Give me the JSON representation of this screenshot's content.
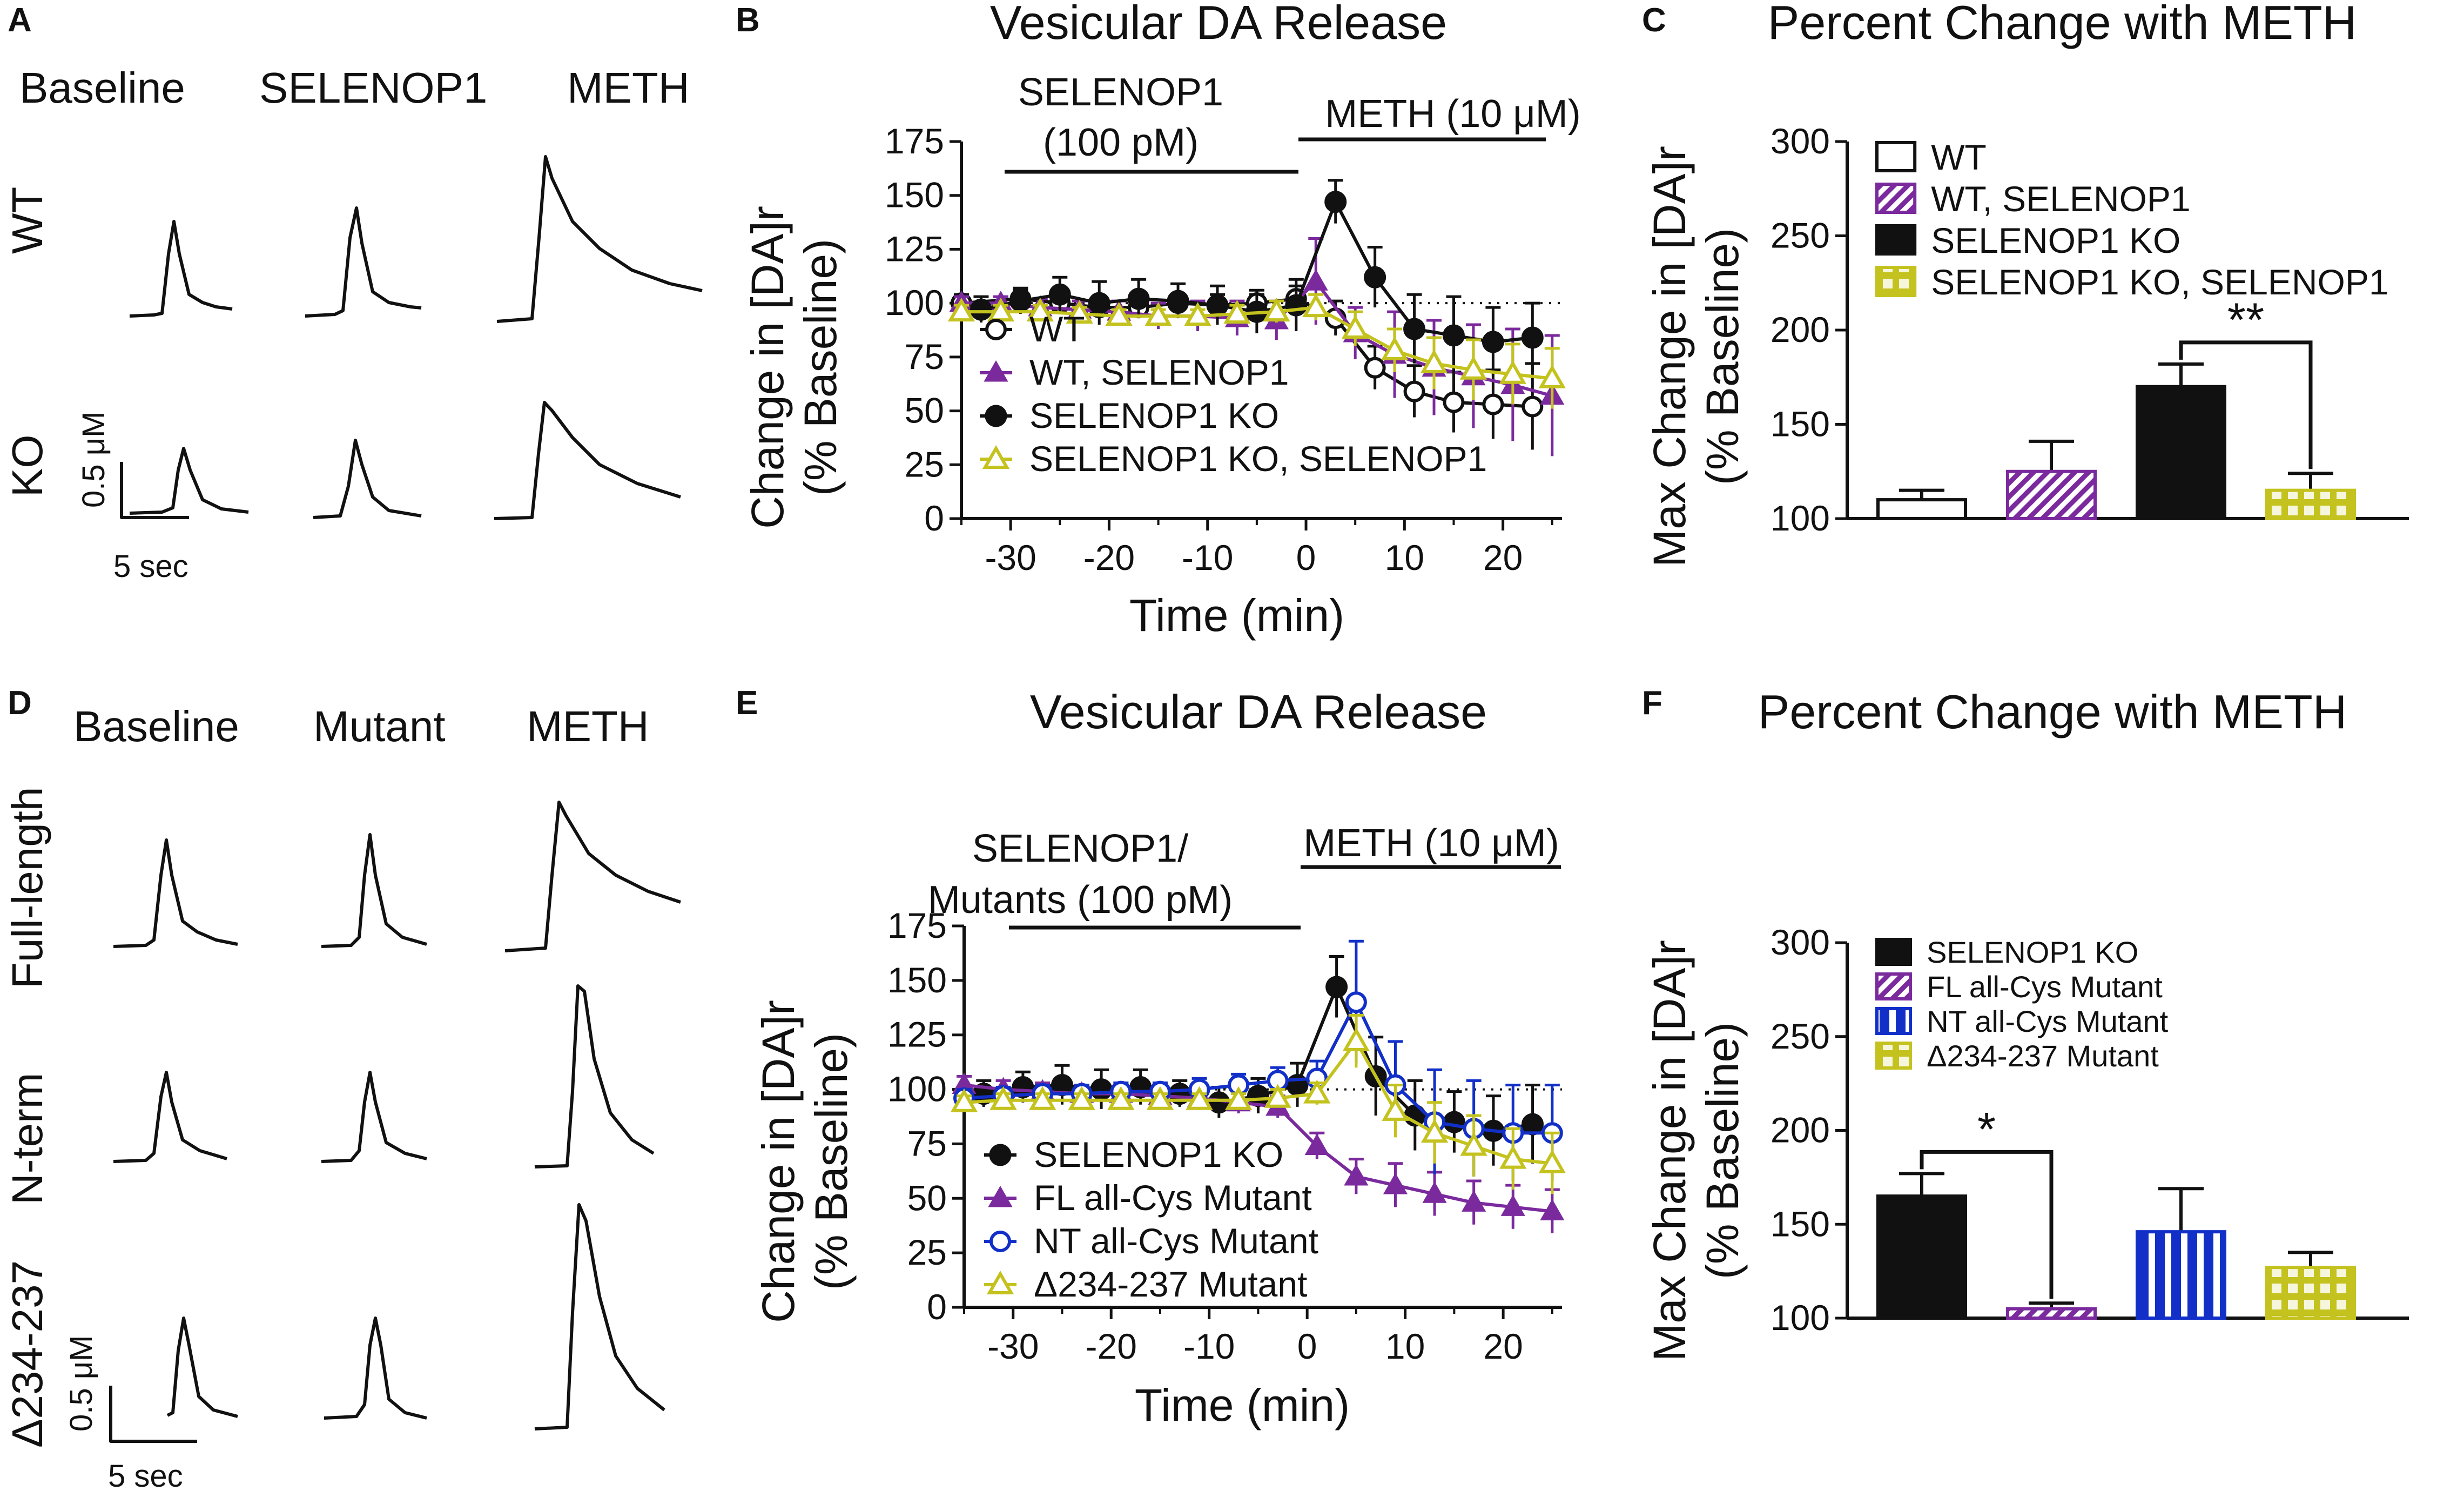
{
  "panels": {
    "A": {
      "letter": "A",
      "col_headers": [
        "Baseline",
        "SELENOP1",
        "METH"
      ],
      "row_labels": [
        "WT",
        "KO"
      ],
      "scale_y": "0.5 μM",
      "scale_x": "5 sec"
    },
    "D": {
      "letter": "D",
      "col_headers": [
        "Baseline",
        "Mutant",
        "METH"
      ],
      "row_labels": [
        "Full-length",
        "N-term",
        "Δ234-237"
      ],
      "scale_y": "0.5 μM",
      "scale_x": "5 sec"
    },
    "B": {
      "letter": "B",
      "treat1_line1": "SELENOP1",
      "treat1_line2": "(100 pM)",
      "treat2": "METH (10 μM)"
    },
    "E": {
      "letter": "E",
      "treat1_line1": "SELENOP1/",
      "treat1_line2": "Mutants (100 pM)",
      "treat2": "METH (10 μM)"
    },
    "C": {
      "letter": "C",
      "significance": "**"
    },
    "F": {
      "letter": "F",
      "significance": "*"
    }
  },
  "colors": {
    "purple": "#7B2A9E",
    "blue": "#1230C8",
    "yellow": "#C4C21E",
    "black": "#111111"
  },
  "chart_data": [
    {
      "id": "B",
      "type": "line",
      "title": "Vesicular DA Release",
      "xlabel": "Time (min)",
      "ylabel_line1": "Change in [DA]r",
      "ylabel_line2": "(% Baseline)",
      "xlim": [
        -35,
        26
      ],
      "ylim": [
        0,
        175
      ],
      "xticks": [
        -30,
        -20,
        -10,
        0,
        10,
        20
      ],
      "yticks": [
        0,
        25,
        50,
        75,
        100,
        125,
        150,
        175
      ],
      "reference_line": 100,
      "series": [
        {
          "name": "WT",
          "marker": "circle-open",
          "color": "#111111",
          "x": [
            -35,
            -29,
            -25,
            -21,
            -17,
            -13,
            -9,
            -5,
            -1,
            3,
            7,
            11,
            15,
            19,
            23
          ],
          "y": [
            100,
            102,
            100,
            98,
            98,
            100,
            99,
            100,
            102,
            93,
            70,
            59,
            54,
            53,
            52
          ],
          "err": [
            4,
            4,
            5,
            4,
            5,
            4,
            5,
            4,
            6,
            8,
            10,
            12,
            14,
            16,
            20
          ]
        },
        {
          "name": "WT, SELENOP1",
          "marker": "triangle",
          "color": "#7B2A9E",
          "x": [
            -35,
            -31,
            -27,
            -23,
            -19,
            -15,
            -11,
            -7,
            -3,
            1,
            5,
            9,
            13,
            17,
            21,
            25
          ],
          "y": [
            100,
            100,
            98,
            97,
            96,
            94,
            94,
            93,
            92,
            110,
            86,
            76,
            70,
            66,
            62,
            57
          ],
          "err": [
            3,
            3,
            4,
            4,
            5,
            6,
            7,
            8,
            9,
            20,
            12,
            20,
            22,
            24,
            26,
            28
          ]
        },
        {
          "name": "SELENOP1 KO",
          "marker": "circle-filled",
          "color": "#111111",
          "x": [
            -33,
            -29,
            -25,
            -21,
            -17,
            -13,
            -9,
            -5,
            -1,
            3,
            7,
            11,
            15,
            19,
            23
          ],
          "y": [
            97,
            101,
            104,
            100,
            102,
            101,
            99,
            96,
            99,
            147,
            112,
            88,
            85,
            82,
            84
          ],
          "err": [
            6,
            6,
            8,
            10,
            9,
            8,
            9,
            10,
            12,
            10,
            14,
            16,
            18,
            16,
            16
          ]
        },
        {
          "name": "SELENOP1 KO, SELENOP1",
          "marker": "triangle-open",
          "color": "#C4C21E",
          "x": [
            -35,
            -31,
            -27,
            -23,
            -19,
            -15,
            -11,
            -7,
            -3,
            1,
            5,
            9,
            13,
            17,
            21,
            25
          ],
          "y": [
            96,
            96,
            96,
            95,
            94,
            94,
            94,
            95,
            96,
            98,
            88,
            78,
            72,
            69,
            67,
            65
          ],
          "err": [
            3,
            3,
            3,
            3,
            3,
            3,
            3,
            4,
            5,
            6,
            8,
            10,
            12,
            14,
            14,
            14
          ]
        }
      ]
    },
    {
      "id": "C",
      "type": "bar",
      "title": "Percent Change with METH",
      "xlabel": "",
      "ylabel_line1": "Max Change in [DA]r",
      "ylabel_line2": "(% Baseline)",
      "ylim": [
        100,
        300
      ],
      "yticks": [
        100,
        150,
        200,
        250,
        300
      ],
      "categories": [
        "WT",
        "WT, SELENOP1",
        "SELENOP1 KO",
        "SELENOP1 KO, SELENOP1"
      ],
      "fills": [
        "open",
        "purple-hatch",
        "black",
        "yellow-grid"
      ],
      "values": [
        110,
        125,
        170,
        115
      ],
      "errors": [
        5,
        16,
        12,
        9
      ],
      "significance": {
        "from": 2,
        "to": 3,
        "label": "**"
      }
    },
    {
      "id": "E",
      "type": "line",
      "title": "Vesicular DA Release",
      "xlabel": "Time (min)",
      "ylabel_line1": "Change in [DA]r",
      "ylabel_line2": "(% Baseline)",
      "xlim": [
        -35,
        26
      ],
      "ylim": [
        0,
        175
      ],
      "xticks": [
        -30,
        -20,
        -10,
        0,
        10,
        20
      ],
      "yticks": [
        0,
        25,
        50,
        75,
        100,
        125,
        150,
        175
      ],
      "reference_line": 100,
      "series": [
        {
          "name": "SELENOP1 KO",
          "marker": "circle-filled",
          "color": "#111111",
          "x": [
            -33,
            -29,
            -25,
            -21,
            -17,
            -13,
            -9,
            -5,
            -1,
            3,
            7,
            11,
            15,
            19,
            23
          ],
          "y": [
            98,
            101,
            102,
            100,
            101,
            98,
            94,
            97,
            102,
            147,
            106,
            88,
            85,
            81,
            84
          ],
          "err": [
            6,
            7,
            9,
            9,
            8,
            6,
            7,
            8,
            10,
            14,
            18,
            16,
            14,
            16,
            18
          ]
        },
        {
          "name": "FL all-Cys Mutant",
          "marker": "triangle",
          "color": "#7B2A9E",
          "x": [
            -35,
            -31,
            -27,
            -23,
            -19,
            -15,
            -11,
            -7,
            -3,
            1,
            5,
            9,
            13,
            17,
            21,
            25
          ],
          "y": [
            102,
            100,
            99,
            98,
            98,
            97,
            96,
            94,
            92,
            74,
            60,
            56,
            52,
            48,
            46,
            44
          ],
          "err": [
            4,
            4,
            4,
            4,
            4,
            4,
            4,
            5,
            5,
            6,
            8,
            10,
            10,
            10,
            10,
            10
          ]
        },
        {
          "name": "NT all-Cys Mutant",
          "marker": "circle-open",
          "color": "#1230C8",
          "x": [
            -35,
            -31,
            -27,
            -23,
            -19,
            -15,
            -11,
            -7,
            -3,
            1,
            5,
            9,
            13,
            17,
            21,
            25
          ],
          "y": [
            96,
            97,
            98,
            98,
            99,
            99,
            100,
            102,
            104,
            105,
            140,
            102,
            85,
            82,
            80,
            80
          ],
          "err": [
            4,
            4,
            4,
            4,
            4,
            4,
            5,
            5,
            6,
            8,
            28,
            20,
            24,
            22,
            22,
            22
          ]
        },
        {
          "name": "Δ234-237 Mutant",
          "marker": "triangle-open",
          "color": "#C4C21E",
          "x": [
            -35,
            -31,
            -27,
            -23,
            -19,
            -15,
            -11,
            -7,
            -3,
            1,
            5,
            9,
            13,
            17,
            21,
            25
          ],
          "y": [
            94,
            95,
            95,
            95,
            95,
            95,
            95,
            95,
            96,
            98,
            122,
            90,
            80,
            74,
            68,
            66
          ],
          "err": [
            3,
            3,
            3,
            3,
            3,
            3,
            3,
            3,
            4,
            5,
            12,
            12,
            14,
            14,
            14,
            14
          ]
        }
      ]
    },
    {
      "id": "F",
      "type": "bar",
      "title": "Percent Change with METH",
      "xlabel": "",
      "ylabel_line1": "Max Change in [DA]r",
      "ylabel_line2": "(% Baseline)",
      "ylim": [
        100,
        300
      ],
      "yticks": [
        100,
        150,
        200,
        250,
        300
      ],
      "categories": [
        "SELENOP1 KO",
        "FL all-Cys Mutant",
        "NT all-Cys Mutant",
        "Δ234-237 Mutant"
      ],
      "fills": [
        "black",
        "purple-hatch",
        "blue-stripe",
        "yellow-grid"
      ],
      "values": [
        165,
        105,
        146,
        127
      ],
      "errors": [
        12,
        3,
        23,
        8
      ],
      "significance": {
        "from": 0,
        "to": 1,
        "label": "*"
      }
    }
  ]
}
